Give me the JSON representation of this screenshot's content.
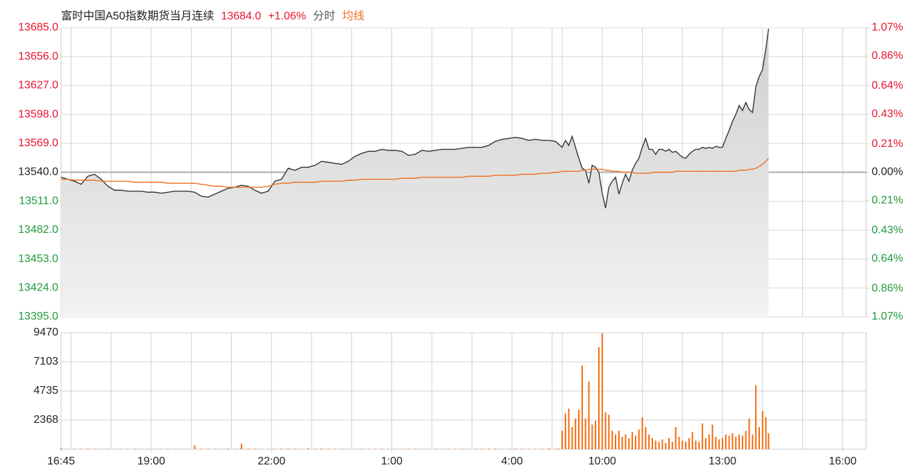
{
  "chart_data": [
    {
      "type": "line",
      "title": "富时中国A50指数期货当月连续",
      "last_price": {
        "value": 13684,
        "label": "13684.0"
      },
      "change": {
        "value": 1.06,
        "label": "+1.06%"
      },
      "xlim": [
        0,
        1205
      ],
      "x": [
        0,
        10,
        20,
        30,
        40,
        50,
        60,
        70,
        80,
        90,
        100,
        110,
        120,
        130,
        140,
        150,
        160,
        170,
        180,
        190,
        200,
        210,
        220,
        230,
        240,
        250,
        260,
        270,
        280,
        290,
        300,
        310,
        320,
        330,
        340,
        350,
        360,
        370,
        380,
        390,
        400,
        410,
        420,
        430,
        440,
        450,
        460,
        470,
        480,
        490,
        500,
        510,
        520,
        530,
        540,
        550,
        560,
        570,
        580,
        590,
        600,
        610,
        620,
        630,
        640,
        650,
        660,
        670,
        680,
        690,
        700,
        710,
        720,
        730,
        740,
        745,
        750,
        755,
        760,
        765,
        770,
        775,
        780,
        785,
        790,
        795,
        800,
        805,
        810,
        815,
        820,
        825,
        830,
        835,
        840,
        845,
        850,
        855,
        860,
        865,
        870,
        875,
        880,
        885,
        890,
        895,
        900,
        905,
        910,
        915,
        920,
        925,
        930,
        935,
        940,
        945,
        950,
        955,
        960,
        965,
        970,
        975,
        980,
        985,
        990,
        995,
        1000,
        1005,
        1010,
        1015,
        1020,
        1025,
        1030,
        1035,
        1040,
        1045,
        1050,
        1055,
        1059
      ],
      "series": [
        {
          "name": "分时",
          "color": "#333333",
          "values": [
            13535,
            13533,
            13531,
            13528,
            13536,
            13538,
            13533,
            13526,
            13522,
            13522,
            13521,
            13521,
            13521,
            13520,
            13520,
            13519,
            13520,
            13521,
            13521,
            13521,
            13520,
            13516,
            13515,
            13518,
            13521,
            13524,
            13525,
            13527,
            13526,
            13522,
            13519,
            13521,
            13531,
            13533,
            13544,
            13542,
            13545,
            13545,
            13547,
            13551,
            13550,
            13549,
            13548,
            13551,
            13556,
            13559,
            13561,
            13561,
            13563,
            13562,
            13562,
            13561,
            13557,
            13558,
            13562,
            13561,
            13562,
            13563,
            13563,
            13563,
            13564,
            13565,
            13565,
            13565,
            13567,
            13571,
            13573,
            13574,
            13575,
            13574,
            13572,
            13573,
            13572,
            13572,
            13571,
            13568,
            13565,
            13572,
            13567,
            13576,
            13565,
            13554,
            13544,
            13542,
            13529,
            13547,
            13545,
            13540,
            13519,
            13504,
            13525,
            13531,
            13535,
            13518,
            13529,
            13538,
            13531,
            13542,
            13549,
            13554,
            13565,
            13574,
            13563,
            13563,
            13558,
            13563,
            13563,
            13561,
            13563,
            13560,
            13561,
            13558,
            13555,
            13554,
            13558,
            13561,
            13563,
            13563,
            13565,
            13564,
            13565,
            13564,
            13566,
            13565,
            13565,
            13574,
            13582,
            13591,
            13598,
            13607,
            13602,
            13610,
            13603,
            13600,
            13626,
            13636,
            13643,
            13664,
            13684
          ]
        },
        {
          "name": "均线",
          "color": "#f07020",
          "values": [
            13533,
            13533,
            13532,
            13532,
            13532,
            13532,
            13531,
            13531,
            13531,
            13531,
            13531,
            13530,
            13530,
            13530,
            13530,
            13530,
            13529,
            13529,
            13529,
            13529,
            13529,
            13528,
            13527,
            13526,
            13526,
            13525,
            13525,
            13525,
            13525,
            13525,
            13525,
            13526,
            13528,
            13529,
            13529,
            13530,
            13530,
            13530,
            13530,
            13531,
            13531,
            13531,
            13531,
            13532,
            13532,
            13533,
            13533,
            13533,
            13533,
            13533,
            13533,
            13534,
            13534,
            13534,
            13535,
            13535,
            13535,
            13535,
            13535,
            13535,
            13535,
            13536,
            13536,
            13536,
            13536,
            13537,
            13537,
            13537,
            13537,
            13538,
            13538,
            13538,
            13539,
            13539,
            13540,
            13540,
            13541,
            13541,
            13541,
            13541,
            13541,
            13541,
            13542,
            13542,
            13543,
            13543,
            13543,
            13543,
            13543,
            13542,
            13542,
            13541,
            13541,
            13541,
            13540,
            13540,
            13540,
            13540,
            13539,
            13539,
            13539,
            13539,
            13539,
            13540,
            13540,
            13540,
            13540,
            13540,
            13540,
            13540,
            13541,
            13541,
            13541,
            13541,
            13541,
            13541,
            13541,
            13541,
            13541,
            13541,
            13541,
            13541,
            13541,
            13541,
            13541,
            13541,
            13541,
            13541,
            13541,
            13542,
            13542,
            13542,
            13543,
            13543,
            13544,
            13546,
            13548,
            13551,
            13554
          ]
        }
      ],
      "ylim": [
        13395,
        13685
      ],
      "yticks": [
        {
          "value": 13395,
          "label": "13395.0"
        },
        {
          "value": 13424,
          "label": "13424.0"
        },
        {
          "value": 13453,
          "label": "13453.0"
        },
        {
          "value": 13482,
          "label": "13482.0"
        },
        {
          "value": 13511,
          "label": "13511.0"
        },
        {
          "value": 13540,
          "label": "13540.0"
        },
        {
          "value": 13569,
          "label": "13569.0"
        },
        {
          "value": 13598,
          "label": "13598.0"
        },
        {
          "value": 13627,
          "label": "13627.0"
        },
        {
          "value": 13656,
          "label": "13656.0"
        },
        {
          "value": 13685,
          "label": "13685.0"
        }
      ],
      "y2lim": [
        -1.07,
        1.07
      ],
      "y2ticks": [
        {
          "value": -1.07,
          "label": "1.07%"
        },
        {
          "value": -0.86,
          "label": "0.86%"
        },
        {
          "value": -0.64,
          "label": "0.64%"
        },
        {
          "value": -0.43,
          "label": "0.43%"
        },
        {
          "value": -0.21,
          "label": "0.21%"
        },
        {
          "value": 0,
          "label": "0.00%"
        },
        {
          "value": 0.21,
          "label": "0.21%"
        },
        {
          "value": 0.43,
          "label": "0.43%"
        },
        {
          "value": 0.64,
          "label": "0.64%"
        },
        {
          "value": 0.86,
          "label": "0.86%"
        },
        {
          "value": 1.07,
          "label": "1.07%"
        }
      ],
      "grid": true
    },
    {
      "type": "bar",
      "color": "#f56a0a",
      "xlim": [
        0,
        1205
      ],
      "x": [
        0,
        10,
        20,
        30,
        40,
        50,
        60,
        70,
        80,
        90,
        100,
        110,
        120,
        130,
        140,
        150,
        160,
        170,
        180,
        190,
        200,
        210,
        220,
        230,
        240,
        250,
        260,
        270,
        280,
        290,
        300,
        310,
        320,
        330,
        340,
        350,
        360,
        370,
        380,
        390,
        400,
        410,
        420,
        430,
        440,
        450,
        460,
        470,
        480,
        490,
        500,
        510,
        520,
        530,
        540,
        550,
        560,
        570,
        580,
        590,
        600,
        610,
        620,
        630,
        640,
        650,
        660,
        670,
        680,
        690,
        700,
        710,
        720,
        730,
        740,
        745,
        750,
        755,
        760,
        765,
        770,
        775,
        780,
        785,
        790,
        795,
        800,
        805,
        810,
        815,
        820,
        825,
        830,
        835,
        840,
        845,
        850,
        855,
        860,
        865,
        870,
        875,
        880,
        885,
        890,
        895,
        900,
        905,
        910,
        915,
        920,
        925,
        930,
        935,
        940,
        945,
        950,
        955,
        960,
        965,
        970,
        975,
        980,
        985,
        990,
        995,
        1000,
        1005,
        1010,
        1015,
        1020,
        1025,
        1030,
        1035,
        1040,
        1045,
        1050,
        1055,
        1059
      ],
      "values": [
        80,
        30,
        40,
        30,
        50,
        40,
        30,
        40,
        30,
        30,
        30,
        40,
        30,
        30,
        30,
        30,
        30,
        30,
        30,
        30,
        310,
        40,
        30,
        40,
        30,
        50,
        40,
        450,
        50,
        40,
        30,
        30,
        40,
        50,
        60,
        40,
        30,
        80,
        40,
        60,
        40,
        30,
        40,
        30,
        30,
        40,
        30,
        30,
        40,
        30,
        30,
        30,
        40,
        30,
        30,
        30,
        40,
        30,
        30,
        30,
        40,
        30,
        40,
        40,
        50,
        40,
        30,
        30,
        50,
        40,
        30,
        30,
        40,
        60,
        40,
        50,
        1500,
        2900,
        3300,
        1800,
        2500,
        3200,
        6800,
        2500,
        5500,
        2000,
        2300,
        8300,
        9400,
        3000,
        2800,
        1500,
        1200,
        1500,
        1000,
        1200,
        900,
        1400,
        1100,
        1600,
        2600,
        1800,
        1200,
        900,
        700,
        600,
        800,
        500,
        900,
        600,
        1800,
        1000,
        700,
        600,
        900,
        1400,
        700,
        600,
        2100,
        900,
        1200,
        2000,
        1000,
        800,
        900,
        1200,
        1100,
        1300,
        1000,
        1200,
        1100,
        1500,
        2500,
        1200,
        5200,
        1800,
        3100,
        2600,
        1300
      ],
      "ylim": [
        0,
        9470
      ],
      "yticks": [
        2368,
        4735,
        7103,
        9470
      ],
      "xticks": [
        {
          "value": 0,
          "label": "16:45"
        },
        {
          "value": 135,
          "label": "19:00"
        },
        {
          "value": 315,
          "label": "22:00"
        },
        {
          "value": 495,
          "label": "1:00"
        },
        {
          "value": 675,
          "label": "4:00"
        },
        {
          "value": 810,
          "label": "10:00"
        },
        {
          "value": 990,
          "label": "13:00"
        },
        {
          "value": 1170,
          "label": "16:00"
        }
      ],
      "grid": true
    }
  ]
}
